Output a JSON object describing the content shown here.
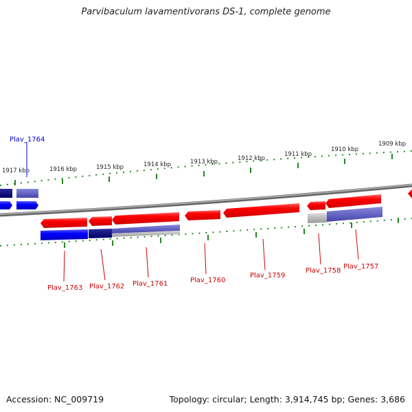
{
  "title": "Parvibaculum lavamentivorans DS-1, complete genome",
  "footer": {
    "accession": "Accession: NC_009719",
    "summary": "Topology: circular; Length: 3,914,745 bp; Genes: 3,686"
  },
  "colors": {
    "forward_gene": "#ff0000",
    "reverse_gene": "#0000ff",
    "tick": "#228822",
    "backbone": "#888888",
    "label_red": "#cc0000",
    "label_blue": "#0000cc"
  },
  "scale": [
    "1917 kbp",
    "1916 kbp",
    "1915 kbp",
    "1914 kbp",
    "1913 kbp",
    "1912 kbp",
    "1911 kbp",
    "1910 kbp",
    "1909 kbp"
  ],
  "gene_labels": [
    "Plav_1764",
    "Plav_1763",
    "Plav_1762",
    "Plav_1761",
    "Plav_1760",
    "Plav_1759",
    "Plav_1758",
    "Plav_1757"
  ]
}
